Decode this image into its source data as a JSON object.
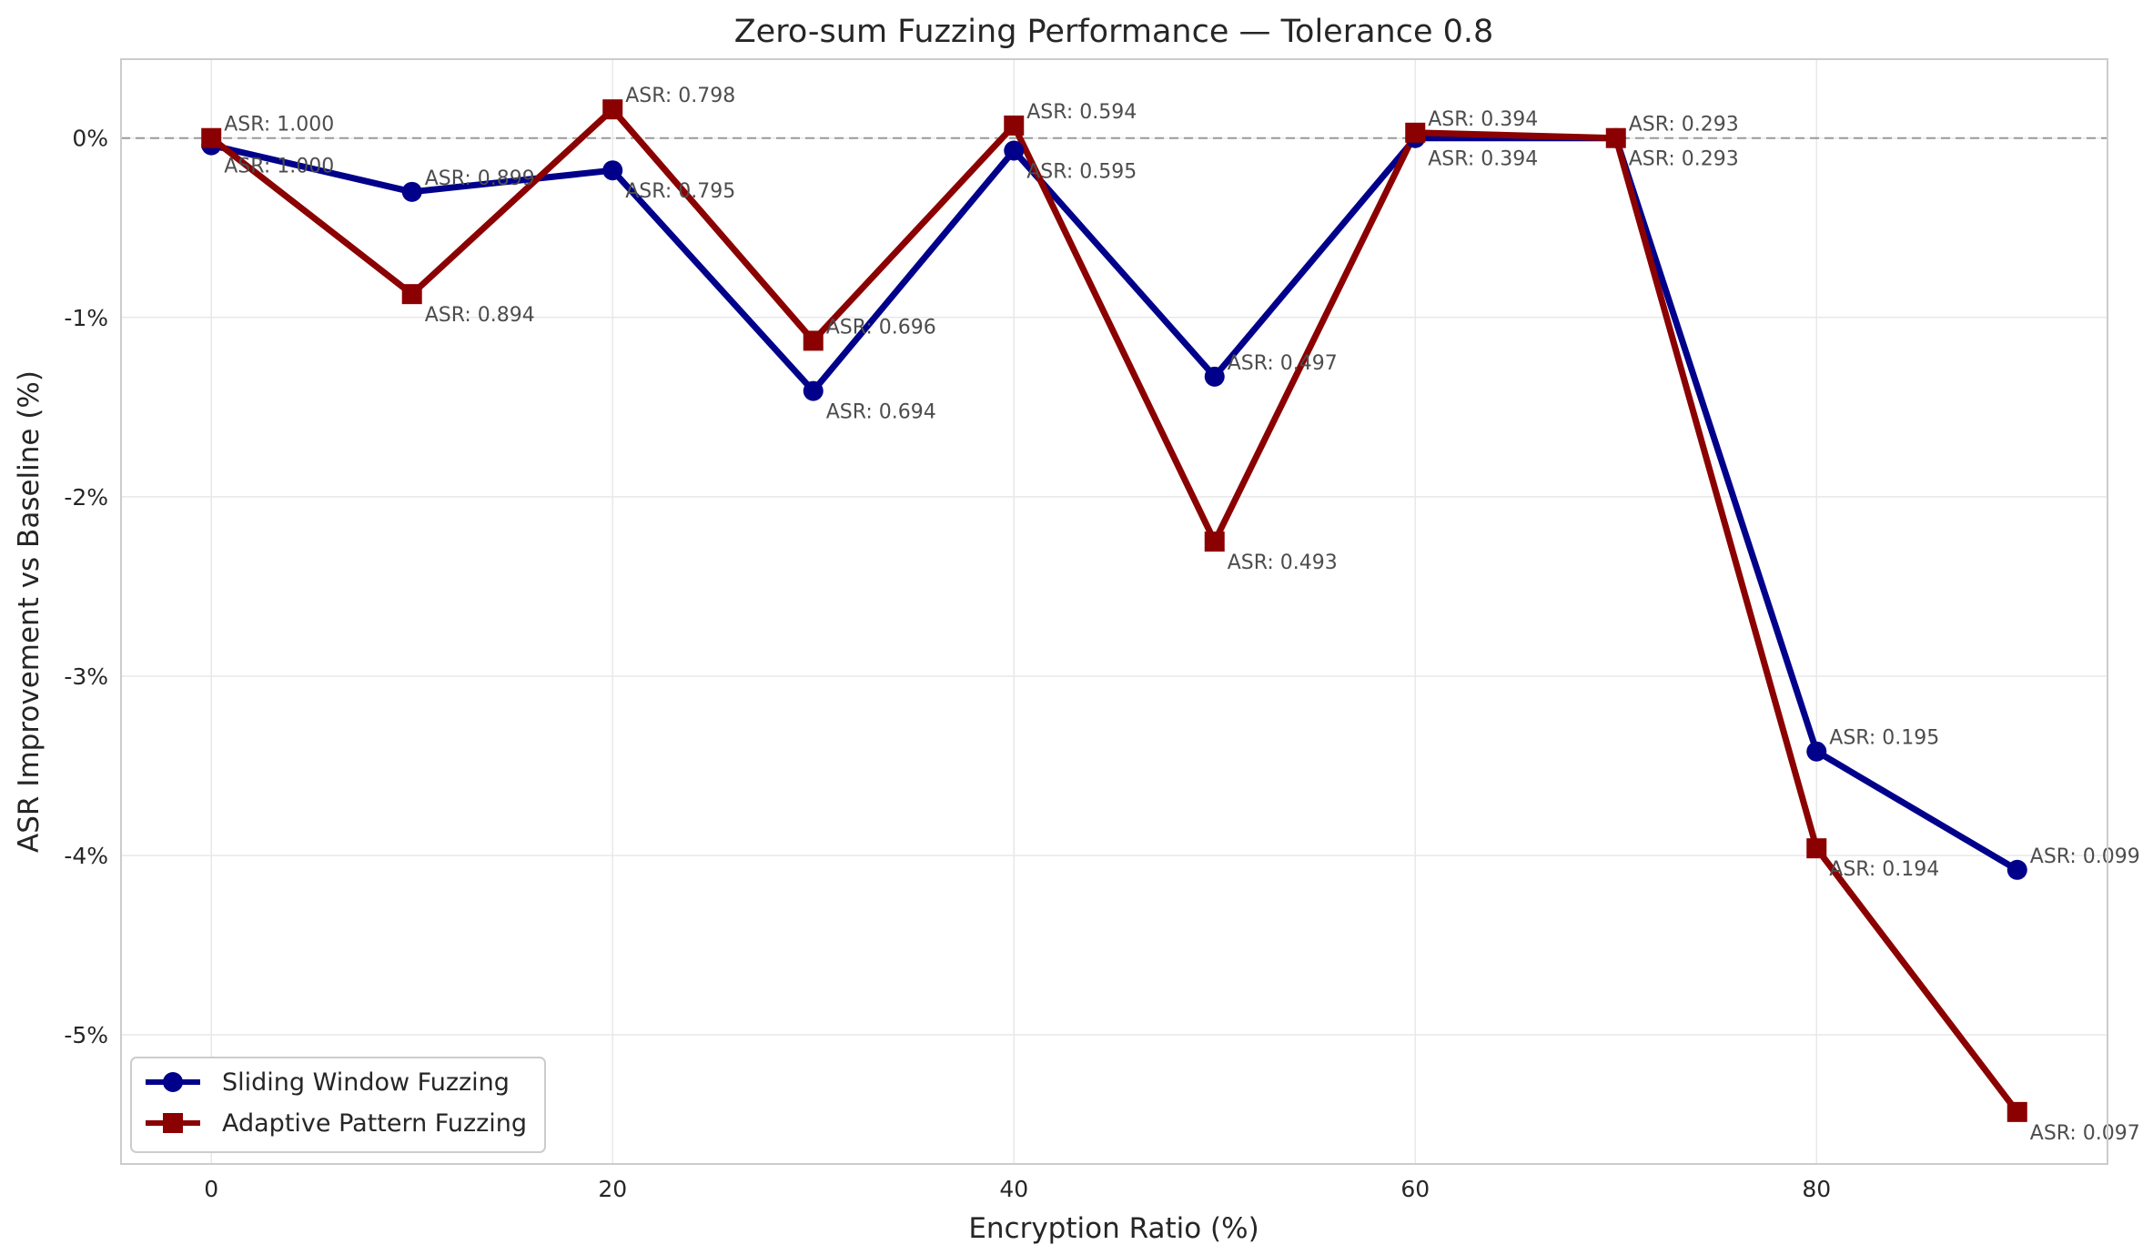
{
  "chart_data": {
    "type": "line",
    "title": "Zero-sum Fuzzing Performance — Tolerance 0.8",
    "xlabel": "Encryption Ratio (%)",
    "ylabel": "ASR Improvement vs Baseline (%)",
    "xlim": [
      -4.5,
      94.5
    ],
    "ylim": [
      -5.72,
      0.44
    ],
    "x_ticks": [
      0,
      20,
      40,
      60,
      80
    ],
    "x_tick_labels": [
      "0",
      "20",
      "40",
      "60",
      "80"
    ],
    "y_ticks": [
      0,
      -1,
      -2,
      -3,
      -4,
      -5
    ],
    "y_tick_labels": [
      "0%",
      "-1%",
      "-2%",
      "-3%",
      "-4%",
      "-5%"
    ],
    "grid": true,
    "baseline": 0,
    "legend_placement": "lower-left",
    "x": [
      0,
      10,
      20,
      30,
      40,
      50,
      60,
      70,
      80,
      90
    ],
    "series": [
      {
        "name": "Sliding Window Fuzzing",
        "color": "#00008b",
        "marker": "circle",
        "values": [
          -0.04,
          -0.3,
          -0.18,
          -1.41,
          -0.07,
          -1.33,
          0.0,
          0.0,
          -3.42,
          -4.08
        ],
        "labels": [
          "ASR: 1.000",
          "ASR: 0.899",
          "ASR: 0.795",
          "ASR: 0.694",
          "ASR: 0.595",
          "ASR: 0.497",
          "ASR: 0.394",
          "ASR: 0.293",
          "ASR: 0.195",
          "ASR: 0.099"
        ]
      },
      {
        "name": "Adaptive Pattern Fuzzing",
        "color": "#8b0000",
        "marker": "square",
        "values": [
          0.0,
          -0.87,
          0.16,
          -1.13,
          0.07,
          -2.25,
          0.03,
          0.0,
          -3.96,
          -5.43
        ],
        "labels": [
          "ASR: 1.000",
          "ASR: 0.894",
          "ASR: 0.798",
          "ASR: 0.696",
          "ASR: 0.594",
          "ASR: 0.493",
          "ASR: 0.394",
          "ASR: 0.293",
          "ASR: 0.194",
          "ASR: 0.097"
        ]
      }
    ]
  }
}
